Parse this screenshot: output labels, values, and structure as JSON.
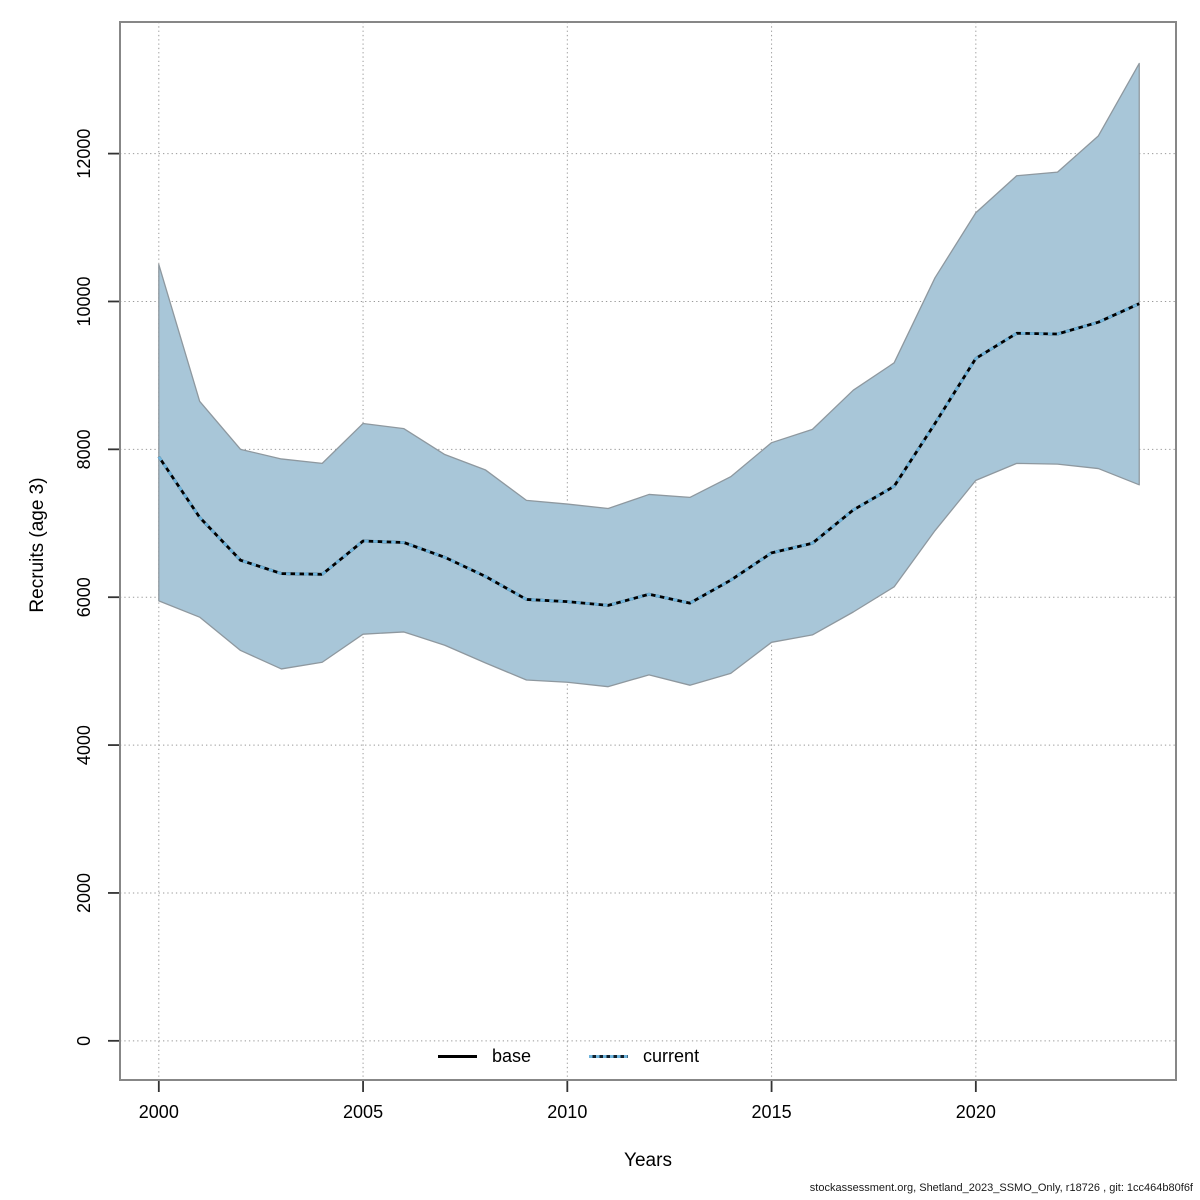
{
  "page": {
    "background": "#ffffff"
  },
  "footer": {
    "text": "stockassessment.org, Shetland_2023_SSMO_Only, r18726 , git: 1cc464b80f6f"
  },
  "chart_data": {
    "type": "line",
    "title": "",
    "xlabel": "Years",
    "ylabel": "Recruits (age 3)",
    "grid": true,
    "xlim": [
      1999.05,
      2024.9
    ],
    "ylim": [
      -530,
      13780
    ],
    "x_ticks": [
      2000,
      2005,
      2010,
      2015,
      2020
    ],
    "y_ticks": [
      0,
      2000,
      4000,
      6000,
      8000,
      10000,
      12000
    ],
    "x": [
      2000,
      2001,
      2002,
      2003,
      2004,
      2005,
      2006,
      2007,
      2008,
      2009,
      2010,
      2011,
      2012,
      2013,
      2014,
      2015,
      2016,
      2017,
      2018,
      2019,
      2020,
      2021,
      2022,
      2023,
      2024
    ],
    "series": [
      {
        "name": "base",
        "style": "solid",
        "color": "#000000",
        "values": [
          7900,
          7080,
          6500,
          6320,
          6310,
          6760,
          6740,
          6540,
          6280,
          5970,
          5940,
          5890,
          6040,
          5920,
          6230,
          6600,
          6730,
          7180,
          7500,
          8350,
          9230,
          9570,
          9560,
          9720,
          9970
        ]
      },
      {
        "name": "current",
        "style": "dotted",
        "color": "#6fb4dc",
        "values": [
          7900,
          7080,
          6500,
          6320,
          6310,
          6760,
          6740,
          6540,
          6280,
          5970,
          5940,
          5890,
          6040,
          5920,
          6230,
          6600,
          6730,
          7180,
          7500,
          8350,
          9230,
          9570,
          9560,
          9720,
          9970
        ]
      }
    ],
    "band": {
      "name": "confidence-band",
      "fill": "#a8c6d8",
      "stroke": "#8e989f",
      "lower": [
        5950,
        5730,
        5280,
        5030,
        5120,
        5500,
        5530,
        5350,
        5110,
        4880,
        4850,
        4790,
        4950,
        4810,
        4970,
        5390,
        5490,
        5800,
        6140,
        6900,
        7580,
        7810,
        7800,
        7740,
        7520
      ],
      "upper": [
        10500,
        8650,
        8000,
        7870,
        7810,
        8350,
        8280,
        7930,
        7720,
        7310,
        7260,
        7200,
        7390,
        7350,
        7630,
        8090,
        8270,
        8800,
        9170,
        10320,
        11200,
        11700,
        11750,
        12240,
        13220
      ]
    },
    "legend": {
      "position": "bottom-center",
      "entries": [
        {
          "label": "base",
          "style": "solid"
        },
        {
          "label": "current",
          "style": "dotted"
        }
      ]
    },
    "style": {
      "grid_color": "#999999",
      "box_color": "#878787",
      "tick_color": "#333333",
      "text_color": "#000000"
    }
  }
}
